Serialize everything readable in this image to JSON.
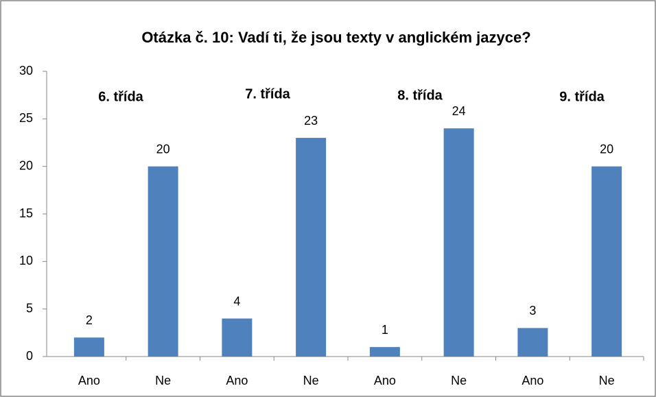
{
  "chart_data": {
    "type": "bar",
    "title": "Otázka č. 10: Vadí ti, že jsou texty v anglickém jazyce?",
    "categories": [
      "Ano",
      "Ne",
      "Ano",
      "Ne",
      "Ano",
      "Ne",
      "Ano",
      "Ne"
    ],
    "values": [
      2,
      20,
      4,
      23,
      1,
      24,
      3,
      20
    ],
    "color": "#4f81bd",
    "ylim": [
      0,
      30
    ],
    "yticks": [
      0,
      5,
      10,
      15,
      20,
      25,
      30
    ],
    "grid": false,
    "annotations": [
      "6. třída",
      "7. třída",
      "8. třída",
      "9. třída"
    ]
  }
}
